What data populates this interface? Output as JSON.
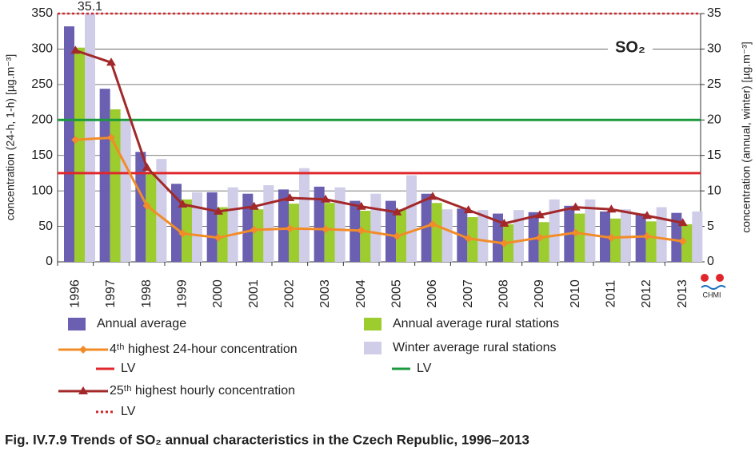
{
  "chart_data": {
    "type": "bar",
    "title": "Fig. IV.7.9  Trends of SO₂ annual characteristics in the Czech Republic, 1996–2013",
    "annotation": "SO₂",
    "logo": "CHMI",
    "ylabel": "concentration (24-h, 1-h) [µg.m⁻³]",
    "y2label": "concentration (annual, winter) [µg.m⁻³]",
    "categories": [
      "1996",
      "1997",
      "1998",
      "1999",
      "2000",
      "2001",
      "2002",
      "2003",
      "2004",
      "2005",
      "2006",
      "2007",
      "2008",
      "2009",
      "2010",
      "2011",
      "2012",
      "2013"
    ],
    "ylim": [
      0,
      350
    ],
    "yticks": [
      0,
      50,
      100,
      150,
      200,
      250,
      300,
      350
    ],
    "y2lim": [
      0,
      35
    ],
    "y2ticks": [
      0,
      5,
      10,
      15,
      20,
      25,
      30,
      35
    ],
    "grid": true,
    "series": [
      {
        "name": "Annual average",
        "type": "bar",
        "axis": "y2",
        "color": "#6a5fb0",
        "values": [
          33.2,
          24.4,
          15.5,
          11.0,
          9.8,
          9.6,
          10.2,
          10.6,
          8.6,
          8.6,
          9.6,
          7.5,
          6.8,
          7.0,
          7.9,
          7.1,
          6.8,
          6.9
        ]
      },
      {
        "name": "Annual average rural stations",
        "type": "bar",
        "axis": "y2",
        "color": "#9ccc2e",
        "values": [
          30.2,
          21.5,
          12.7,
          8.8,
          7.7,
          7.4,
          8.2,
          8.3,
          7.2,
          7.4,
          8.3,
          6.3,
          5.3,
          5.6,
          6.8,
          6.1,
          5.7,
          5.3
        ]
      },
      {
        "name": "Winter average rural stations",
        "type": "bar",
        "axis": "y2",
        "color": "#cfcde8",
        "values": [
          35.1,
          19.8,
          14.5,
          9.8,
          10.5,
          10.8,
          13.2,
          10.5,
          9.6,
          12.2,
          7.4,
          7.3,
          7.3,
          8.8,
          8.8,
          7.4,
          7.7,
          7.1
        ],
        "value_labels": [
          "35.1",
          null,
          null,
          null,
          null,
          null,
          null,
          null,
          null,
          null,
          null,
          null,
          null,
          null,
          null,
          null,
          null,
          null
        ]
      },
      {
        "name": "4ᵗʰ highest 24-hour concentration",
        "type": "line",
        "axis": "y",
        "color": "#f28c28",
        "marker": "diamond",
        "values": [
          172,
          175,
          79,
          40,
          34,
          45,
          47,
          46,
          44,
          36,
          53,
          33,
          26,
          34,
          41,
          34,
          36,
          29
        ]
      },
      {
        "name": "25ᵗʰ highest hourly concentration",
        "type": "line",
        "axis": "y",
        "color": "#a3282a",
        "marker": "triangle",
        "values": [
          298,
          281,
          133,
          81,
          71,
          78,
          90,
          88,
          78,
          70,
          92,
          73,
          54,
          66,
          77,
          74,
          65,
          55
        ]
      }
    ],
    "limit_lines": [
      {
        "name": "LV",
        "value": 125,
        "color": "#e0262b",
        "style": "solid"
      },
      {
        "name": "LV",
        "value": 200,
        "color": "#1a9a3c",
        "style": "solid"
      },
      {
        "name": "LV",
        "value": 350,
        "color": "#d2262b",
        "style": "dotted"
      }
    ]
  }
}
